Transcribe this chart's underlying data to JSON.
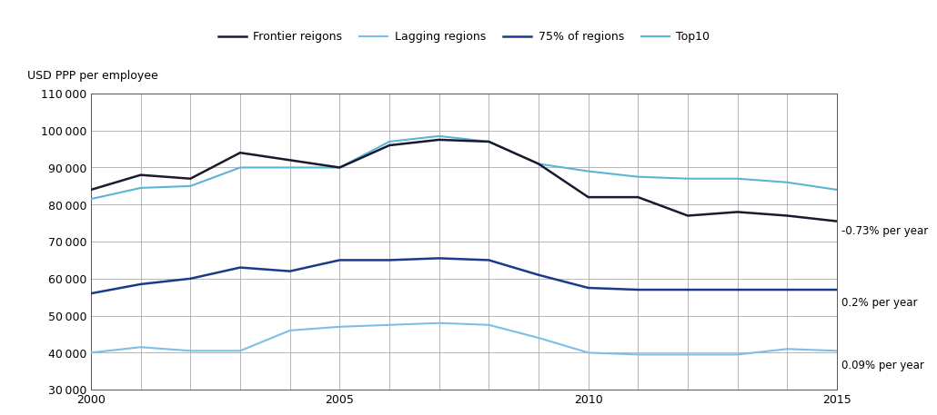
{
  "years": [
    2000,
    2001,
    2002,
    2003,
    2004,
    2005,
    2006,
    2007,
    2008,
    2009,
    2010,
    2011,
    2012,
    2013,
    2014,
    2015
  ],
  "frontier_regions": [
    84000,
    88000,
    87000,
    94000,
    92000,
    90000,
    96000,
    97500,
    97000,
    91000,
    82000,
    82000,
    77000,
    78000,
    77000,
    75500
  ],
  "lagging_regions": [
    40000,
    41500,
    40500,
    40500,
    46000,
    47000,
    47500,
    48000,
    47500,
    44000,
    40000,
    39500,
    39500,
    39500,
    41000,
    40500
  ],
  "regions_75pct": [
    56000,
    58500,
    60000,
    63000,
    62000,
    65000,
    65000,
    65500,
    65000,
    61000,
    57500,
    57000,
    57000,
    57000,
    57000,
    57000
  ],
  "top10": [
    81500,
    84500,
    85000,
    90000,
    90000,
    90000,
    97000,
    98500,
    97000,
    91000,
    89000,
    87500,
    87000,
    87000,
    86000,
    84000
  ],
  "color_frontier": "#1a1a2e",
  "color_lagging": "#7bbfe8",
  "color_75pct": "#1b3a8c",
  "color_top10": "#5ab4d6",
  "legend_labels": [
    "Frontier reigons",
    "Lagging regions",
    "75% of regions",
    "Top10"
  ],
  "ylabel": "USD PPP per employee",
  "ylim": [
    30000,
    110000
  ],
  "yticks": [
    30000,
    40000,
    50000,
    60000,
    70000,
    80000,
    90000,
    100000,
    110000
  ],
  "xlim_left": 2000,
  "xlim_right": 2015,
  "xticks": [
    2000,
    2005,
    2010,
    2015
  ],
  "ann1_text": "-0.73% per year",
  "ann1_y": 73000,
  "ann2_text": "0.2% per year",
  "ann2_y": 53500,
  "ann3_text": "0.09% per year",
  "ann3_y": 36500,
  "legend_facecolor": "#d4d4d4",
  "legend_edgecolor": "#aaaaaa"
}
